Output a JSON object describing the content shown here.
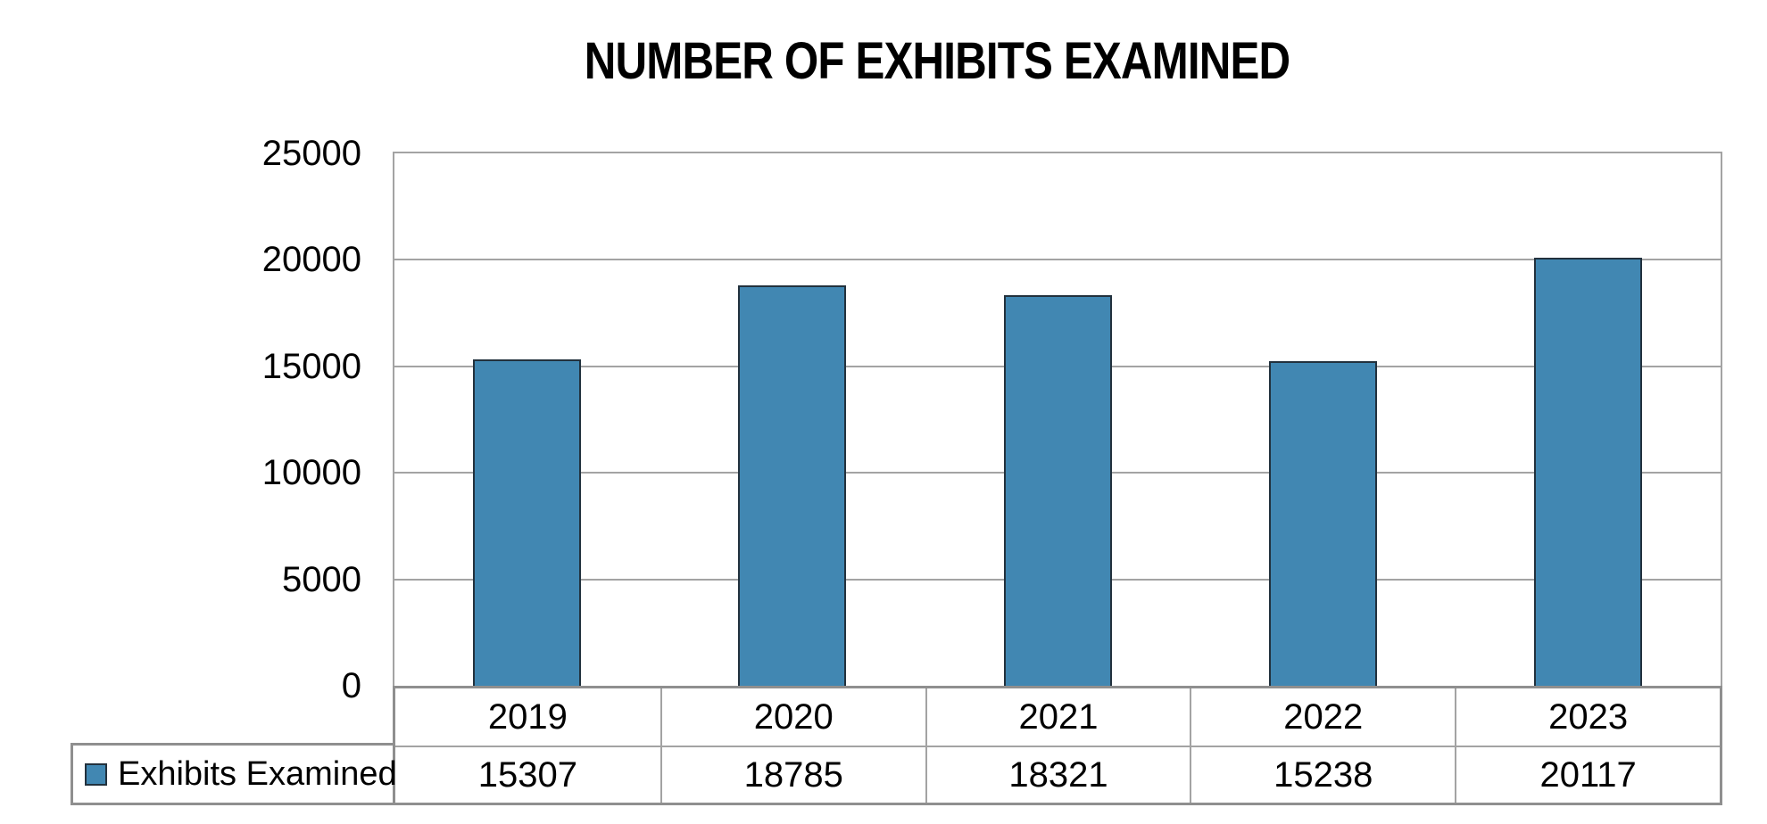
{
  "title": "NUMBER OF EXHIBITS EXAMINED",
  "chart_data": {
    "type": "bar",
    "title": "NUMBER OF EXHIBITS EXAMINED",
    "categories": [
      "2019",
      "2020",
      "2021",
      "2022",
      "2023"
    ],
    "series": [
      {
        "name": "Exhibits Examined",
        "values": [
          15307,
          18785,
          18321,
          15238,
          20117
        ]
      }
    ],
    "ylim": [
      0,
      25000
    ],
    "yticks": [
      25000,
      20000,
      15000,
      10000,
      5000,
      0
    ],
    "grid": "horizontal",
    "legend_position": "bottom-left",
    "data_table_shown": true,
    "colors": {
      "bar_fill": "#4187B2",
      "bar_border": "#22313D",
      "gridline": "#A3A3A3",
      "table_border": "#8F8F8F",
      "background": "#FFFFFF",
      "text": "#000000"
    }
  }
}
